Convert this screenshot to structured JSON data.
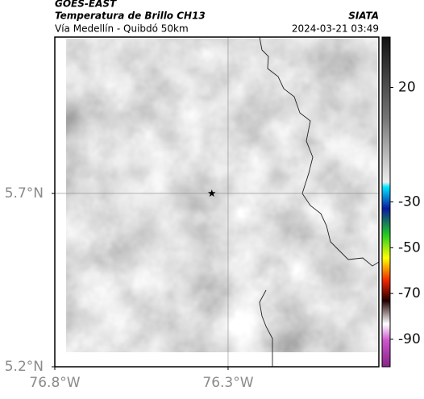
{
  "header": {
    "source": "GOES-EAST",
    "product": "Temperatura de Brillo CH13",
    "region": "Vía Medellín - Quibdó 50km",
    "agency": "SIATA",
    "timestamp": "2024-03-21 03:49"
  },
  "map": {
    "xlim": [
      -76.8,
      -75.865
    ],
    "ylim": [
      5.2,
      6.151
    ],
    "xticks": [
      {
        "value": -76.8,
        "label": "76.8°W"
      },
      {
        "value": -76.3,
        "label": "76.3°W"
      }
    ],
    "yticks": [
      {
        "value": 5.7,
        "label": "5.7°N"
      },
      {
        "value": 5.2,
        "label": "5.2°N"
      }
    ],
    "grid": true,
    "marker": {
      "lon": -76.347,
      "lat": 5.7
    }
  },
  "colorbar": {
    "clim": [
      42,
      -102
    ],
    "ticks": [
      20,
      -30,
      -50,
      -70,
      -90
    ]
  }
}
